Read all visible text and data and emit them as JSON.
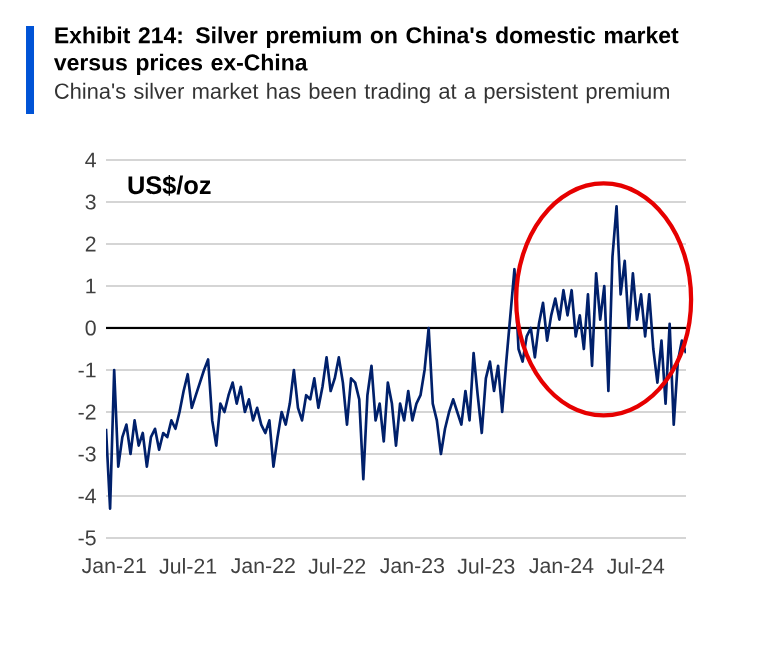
{
  "chart_data": {
    "type": "line",
    "title": "Exhibit 214: Silver premium on China's domestic market versus prices ex-China",
    "subtitle": "China's silver market has been trading at a persistent premium",
    "ylabel": "US$/oz",
    "xlim": [
      "2020-12-12",
      "2024-11-01"
    ],
    "ylim": [
      -5,
      4
    ],
    "xticks": [
      {
        "value": "2021-01-01",
        "label": "Jan-21"
      },
      {
        "value": "2021-07-01",
        "label": "Jul-21"
      },
      {
        "value": "2022-01-01",
        "label": "Jan-22"
      },
      {
        "value": "2022-07-01",
        "label": "Jul-22"
      },
      {
        "value": "2023-01-01",
        "label": "Jan-23"
      },
      {
        "value": "2023-07-01",
        "label": "Jul-23"
      },
      {
        "value": "2024-01-01",
        "label": "Jan-24"
      },
      {
        "value": "2024-07-01",
        "label": "Jul-24"
      }
    ],
    "yticks": [
      -5,
      -4,
      -3,
      -2,
      -1,
      0,
      1,
      2,
      3,
      4
    ],
    "grid": "y",
    "marker": "none",
    "line_style": "solid",
    "ref_lines": [
      {
        "axis": "y",
        "value": 0,
        "color": "#000000"
      }
    ],
    "x": [
      "2020-12-12",
      "2020-12-22",
      "2021-01-01",
      "2021-01-11",
      "2021-01-21",
      "2021-01-31",
      "2021-02-10",
      "2021-02-20",
      "2021-03-02",
      "2021-03-12",
      "2021-03-22",
      "2021-04-01",
      "2021-04-11",
      "2021-04-21",
      "2021-05-01",
      "2021-05-11",
      "2021-05-21",
      "2021-05-31",
      "2021-06-10",
      "2021-06-20",
      "2021-06-30",
      "2021-07-10",
      "2021-07-20",
      "2021-07-30",
      "2021-08-09",
      "2021-08-19",
      "2021-08-29",
      "2021-09-08",
      "2021-09-18",
      "2021-09-28",
      "2021-10-08",
      "2021-10-18",
      "2021-10-28",
      "2021-11-07",
      "2021-11-17",
      "2021-11-27",
      "2021-12-07",
      "2021-12-17",
      "2021-12-27",
      "2022-01-06",
      "2022-01-16",
      "2022-01-26",
      "2022-02-05",
      "2022-02-15",
      "2022-02-25",
      "2022-03-07",
      "2022-03-17",
      "2022-03-27",
      "2022-04-06",
      "2022-04-16",
      "2022-04-26",
      "2022-05-06",
      "2022-05-16",
      "2022-05-26",
      "2022-06-05",
      "2022-06-15",
      "2022-06-25",
      "2022-07-05",
      "2022-07-15",
      "2022-07-25",
      "2022-08-04",
      "2022-08-14",
      "2022-08-24",
      "2022-09-03",
      "2022-09-13",
      "2022-09-23",
      "2022-10-03",
      "2022-10-13",
      "2022-10-23",
      "2022-11-02",
      "2022-11-12",
      "2022-11-22",
      "2022-12-02",
      "2022-12-12",
      "2022-12-22",
      "2023-01-01",
      "2023-01-11",
      "2023-01-21",
      "2023-01-31",
      "2023-02-10",
      "2023-02-20",
      "2023-03-02",
      "2023-03-12",
      "2023-03-22",
      "2023-04-01",
      "2023-04-11",
      "2023-04-21",
      "2023-05-01",
      "2023-05-11",
      "2023-05-21",
      "2023-05-31",
      "2023-06-10",
      "2023-06-20",
      "2023-06-30",
      "2023-07-10",
      "2023-07-20",
      "2023-07-30",
      "2023-08-09",
      "2023-08-19",
      "2023-08-29",
      "2023-09-08",
      "2023-09-18",
      "2023-09-28",
      "2023-10-08",
      "2023-10-18",
      "2023-10-28",
      "2023-11-07",
      "2023-11-17",
      "2023-11-27",
      "2023-12-07",
      "2023-12-17",
      "2023-12-27",
      "2024-01-06",
      "2024-01-16",
      "2024-01-26",
      "2024-02-05",
      "2024-02-15",
      "2024-02-25",
      "2024-03-06",
      "2024-03-16",
      "2024-03-26",
      "2024-04-05",
      "2024-04-15",
      "2024-04-25",
      "2024-05-05",
      "2024-05-15",
      "2024-05-25",
      "2024-06-04",
      "2024-06-14",
      "2024-06-24",
      "2024-07-04",
      "2024-07-14",
      "2024-07-24",
      "2024-08-03",
      "2024-08-13",
      "2024-08-23",
      "2024-09-02",
      "2024-09-12",
      "2024-09-22",
      "2024-10-02",
      "2024-10-12",
      "2024-10-22",
      "2024-11-01"
    ],
    "series": [
      {
        "color": "#00206b",
        "values": [
          -2.4,
          -4.3,
          -1.0,
          -3.3,
          -2.6,
          -2.3,
          -3.0,
          -2.2,
          -2.8,
          -2.5,
          -3.3,
          -2.6,
          -2.4,
          -2.9,
          -2.5,
          -2.6,
          -2.2,
          -2.4,
          -2.0,
          -1.5,
          -1.1,
          -1.9,
          -1.6,
          -1.3,
          -1.0,
          -0.75,
          -2.2,
          -2.8,
          -1.8,
          -2.0,
          -1.6,
          -1.3,
          -1.8,
          -1.4,
          -2.0,
          -1.7,
          -2.2,
          -1.9,
          -2.3,
          -2.5,
          -2.2,
          -3.3,
          -2.6,
          -2.0,
          -2.3,
          -1.8,
          -1.0,
          -1.9,
          -2.2,
          -1.6,
          -1.7,
          -1.2,
          -1.9,
          -1.4,
          -0.7,
          -1.5,
          -1.2,
          -0.7,
          -1.3,
          -2.3,
          -1.2,
          -1.3,
          -1.7,
          -3.6,
          -1.6,
          -0.9,
          -2.2,
          -1.8,
          -2.7,
          -1.3,
          -1.8,
          -2.8,
          -1.8,
          -2.2,
          -1.5,
          -2.2,
          -1.8,
          -1.6,
          -1.0,
          0.0,
          -1.8,
          -2.2,
          -3.0,
          -2.4,
          -2.0,
          -1.7,
          -2.0,
          -2.3,
          -1.5,
          -2.2,
          -0.6,
          -1.6,
          -2.5,
          -1.2,
          -0.8,
          -1.5,
          -0.9,
          -2.0,
          -0.8,
          0.3,
          1.4,
          -0.5,
          -0.8,
          -0.2,
          0.0,
          -0.7,
          0.1,
          0.6,
          -0.3,
          0.3,
          0.7,
          0.2,
          0.9,
          0.3,
          0.9,
          -0.2,
          0.3,
          -0.5,
          0.8,
          -0.9,
          1.3,
          0.2,
          1.0,
          -1.5,
          1.7,
          2.9,
          0.8,
          1.6,
          0.0,
          1.3,
          0.2,
          0.8,
          -0.2,
          0.8,
          -0.5,
          -1.3,
          -0.3,
          -1.8,
          0.1,
          -2.3,
          -0.8,
          -0.3,
          -0.6
        ]
      }
    ]
  }
}
